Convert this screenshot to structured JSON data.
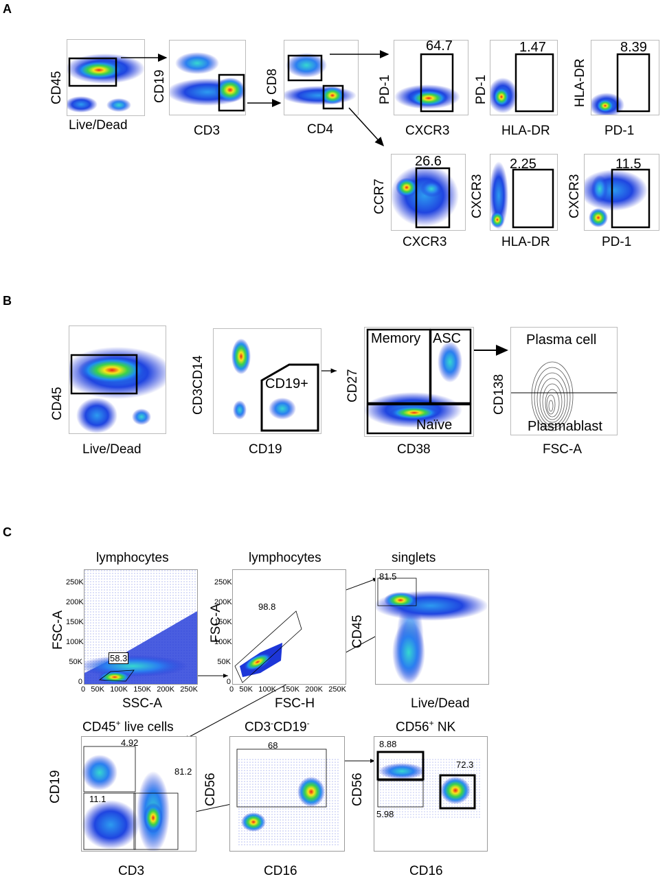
{
  "panels": {
    "A": {
      "letter": "A",
      "p1": {
        "y": "CD45",
        "x": "Live/Dead"
      },
      "p2": {
        "y": "CD19",
        "x": "CD3"
      },
      "p3": {
        "y": "CD8",
        "x": "CD4"
      },
      "p4": {
        "y": "PD-1",
        "x": "CXCR3",
        "value": "64.7"
      },
      "p5": {
        "y": "PD-1",
        "x": "HLA-DR",
        "value": "1.47"
      },
      "p6": {
        "y": "HLA-DR",
        "x": "PD-1",
        "value": "8.39"
      },
      "p7": {
        "y": "CCR7",
        "x": "CXCR3",
        "value": "26.6"
      },
      "p8": {
        "y": "CXCR3",
        "x": "HLA-DR",
        "value": "2.25"
      },
      "p9": {
        "y": "CXCR3",
        "x": "PD-1",
        "value": "11.5"
      }
    },
    "B": {
      "letter": "B",
      "p1": {
        "y": "CD45",
        "x": "Live/Dead"
      },
      "p2": {
        "y": "CD3CD14",
        "x": "CD19",
        "gate": "CD19+"
      },
      "p3": {
        "y": "CD27",
        "x": "CD38",
        "gate_memory": "Memory",
        "gate_asc": "ASC",
        "gate_naive": "Naïve"
      },
      "p4": {
        "y": "CD138",
        "x": "FSC-A",
        "top": "Plasma cell",
        "bottom": "Plasmablast"
      }
    },
    "C": {
      "letter": "C",
      "p1": {
        "title": "lymphocytes",
        "y": "FSC-A",
        "x": "SSC-A",
        "value": "58.3",
        "yticks": [
          "250K",
          "200K",
          "150K",
          "100K",
          "50K",
          "0"
        ],
        "xticks": [
          "0",
          "50K",
          "100K",
          "150K",
          "200K",
          "250K"
        ]
      },
      "p2": {
        "title": "lymphocytes",
        "y": "FSC-A",
        "x": "FSC-H",
        "value": "98.8",
        "yticks": [
          "250K",
          "200K",
          "150K",
          "100K",
          "50K",
          "0"
        ],
        "xticks": [
          "0",
          "50K",
          "100K",
          "150K",
          "200K",
          "250K"
        ]
      },
      "p3": {
        "title": "singlets",
        "y": "CD45",
        "x": "Live/Dead",
        "value": "81.5"
      },
      "p4": {
        "title_main": "CD45",
        "title_sup": "+",
        "title_rest": " live cells",
        "y": "CD19",
        "x": "CD3",
        "v1": "4.92",
        "v2": "81.2",
        "v3": "11.1"
      },
      "p5": {
        "t1": "CD3",
        "t1sup": "-",
        "t2": "CD19",
        "t2sup": "-",
        "y": "CD56",
        "x": "CD16",
        "value": "68"
      },
      "p6": {
        "title_main": "CD56",
        "title_sup": "+",
        "title_rest": " NK",
        "y": "CD56",
        "x": "CD16",
        "v1": "8.88",
        "v2": "72.3",
        "v3": "5.98"
      }
    }
  }
}
